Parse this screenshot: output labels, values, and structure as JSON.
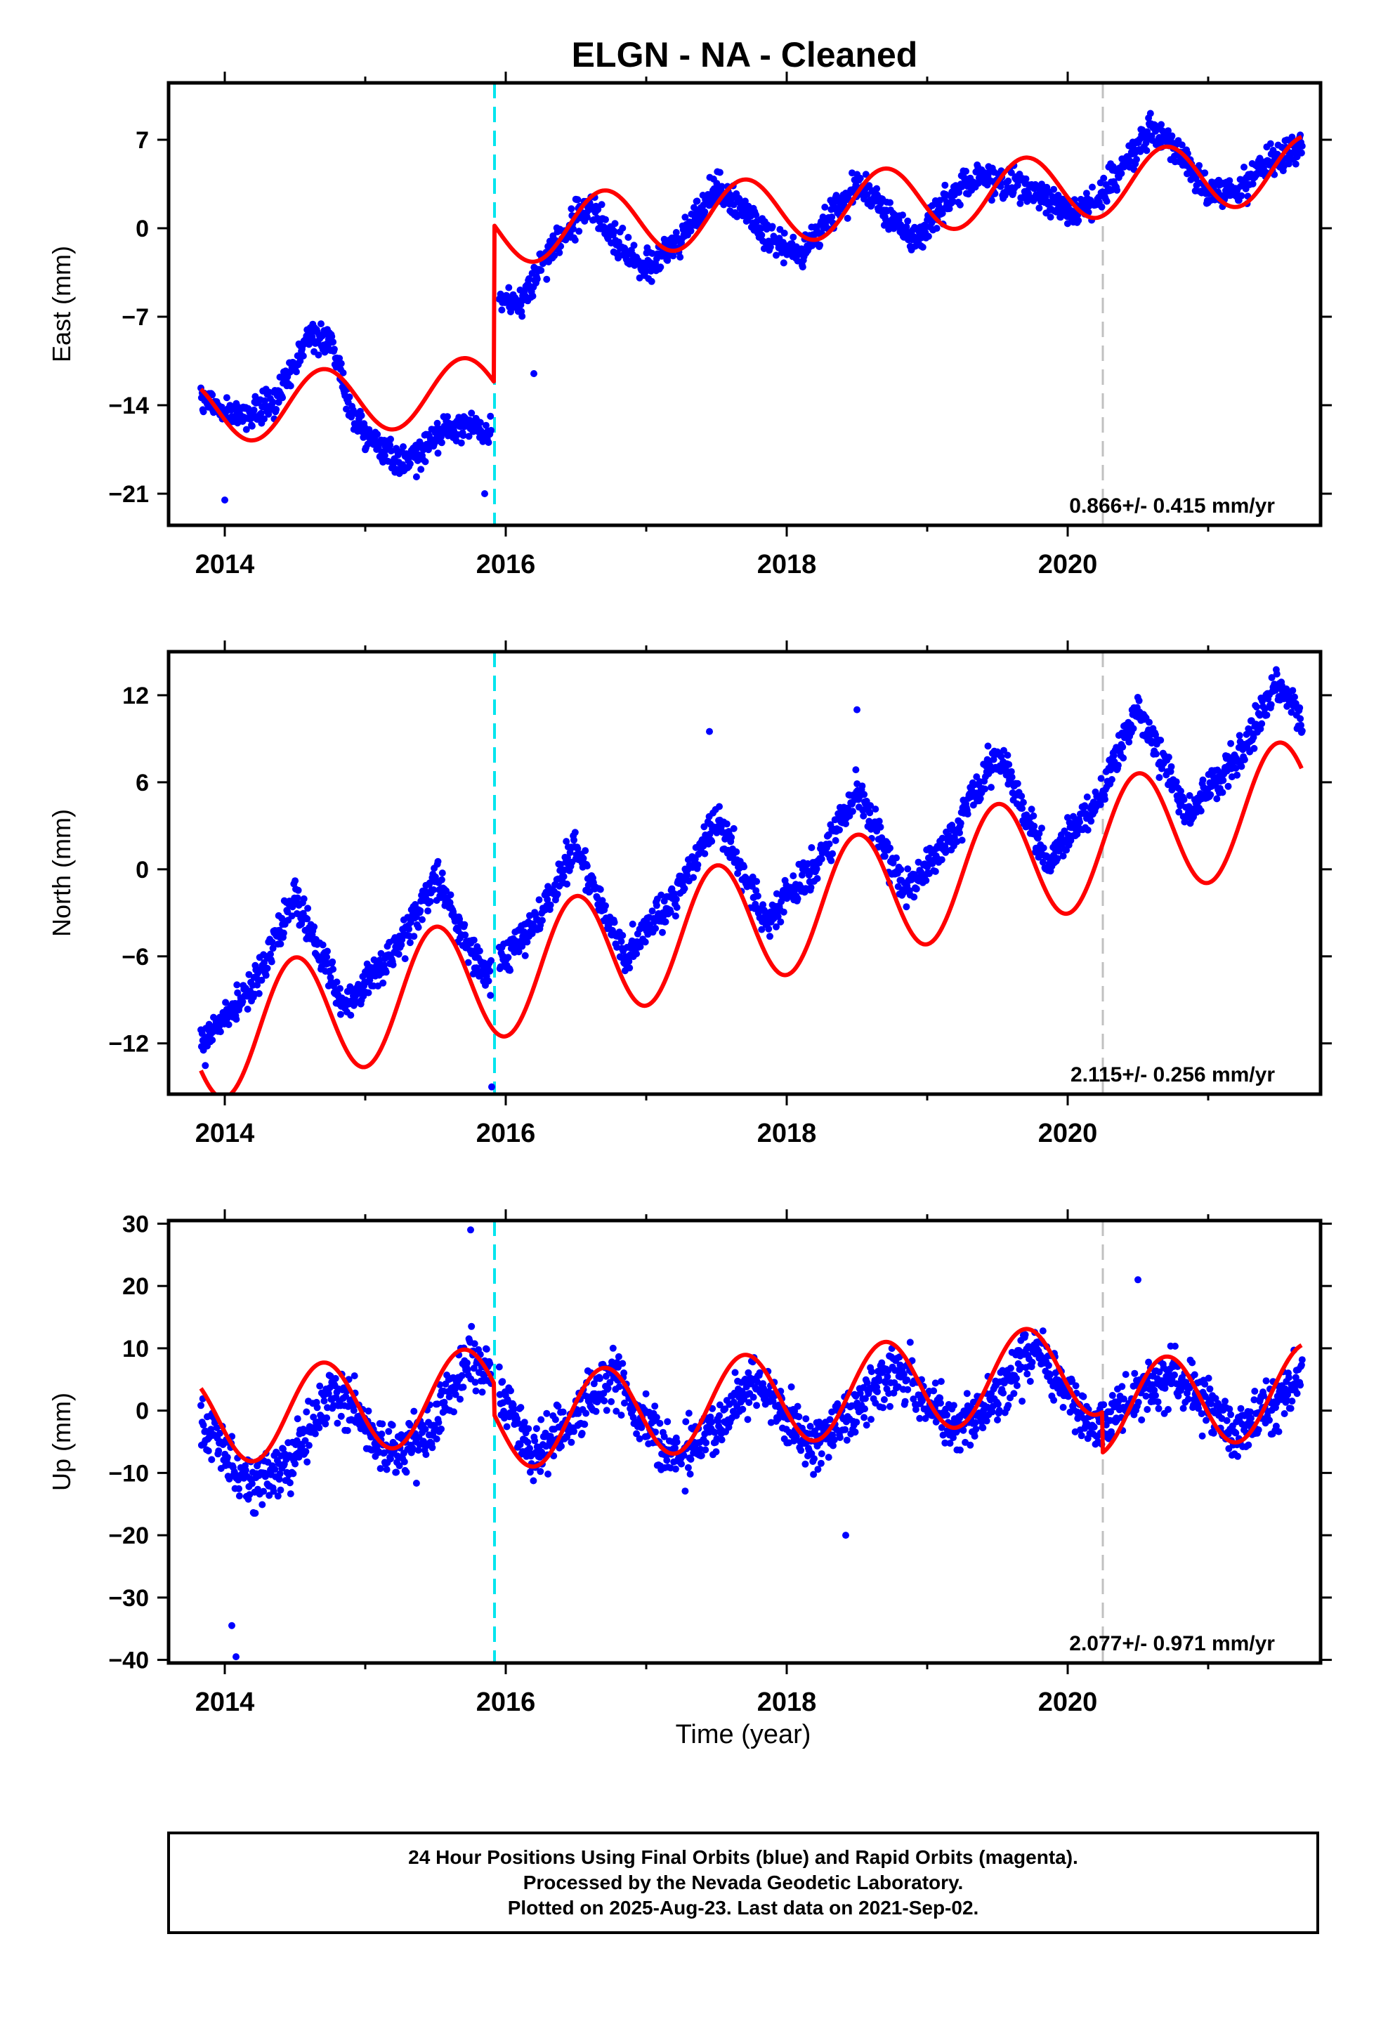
{
  "title": "ELGN  - NA - Cleaned",
  "colors": {
    "final_orbits": "#0000ff",
    "model_fit": "#ff0000",
    "equipment_change": "#00e5ee",
    "other_event": "#c0c0c0"
  },
  "chart_data": [
    {
      "type": "scatter",
      "ylabel": "East (mm)",
      "xlim": [
        2013.6,
        2021.8
      ],
      "ylim": [
        -23.5,
        11.5
      ],
      "yticks": [
        7,
        0,
        -7,
        -14,
        -21
      ],
      "yticklabels": [
        "7",
        "0",
        "−7",
        "−14",
        "−21"
      ],
      "xticks": [
        2014,
        2016,
        2018,
        2020
      ],
      "xticklabels": [
        "2014",
        "2016",
        "2018",
        "2020"
      ],
      "rate": "0.866+/- 0.415 mm/yr",
      "steps": [
        {
          "t": 2015.92,
          "size": 12.4
        }
      ],
      "series": [
        {
          "kind": "points",
          "anchors": {
            "t": [
              2013.83,
              2014.0,
              2014.2,
              2014.4,
              2014.6,
              2014.75,
              2014.9,
              2015.1,
              2015.3,
              2015.5,
              2015.7,
              2015.9,
              2015.93,
              2016.1,
              2016.3,
              2016.6,
              2016.8,
              2017.0,
              2017.2,
              2017.5,
              2017.7,
              2017.9,
              2018.1,
              2018.3,
              2018.5,
              2018.7,
              2018.9,
              2019.1,
              2019.3,
              2019.6,
              2019.8,
              2020.0,
              2020.2,
              2020.4,
              2020.6,
              2020.8,
              2021.0,
              2021.2,
              2021.4,
              2021.67
            ],
            "value": [
              -13.5,
              -14.5,
              -15.0,
              -13.0,
              -8.5,
              -9.0,
              -14.5,
              -17.5,
              -18.5,
              -16.5,
              -15.5,
              -16.0,
              -5.0,
              -6.0,
              -2.0,
              2.0,
              -1.5,
              -3.0,
              -1.5,
              3.0,
              1.5,
              -1.0,
              -2.0,
              1.0,
              3.5,
              1.5,
              -1.0,
              1.5,
              4.0,
              3.5,
              2.5,
              1.5,
              2.0,
              5.0,
              8.0,
              6.0,
              3.0,
              3.0,
              5.0,
              6.5
            ]
          }
        },
        {
          "kind": "model",
          "params": {
            "offset": -14.5,
            "rate": 0.866,
            "seasonal_amplitude": 2.6,
            "peak_year_fraction": 0.7
          }
        }
      ]
    },
    {
      "type": "scatter",
      "ylabel": "North (mm)",
      "xlim": [
        2013.6,
        2021.8
      ],
      "ylim": [
        -15.5,
        15.0
      ],
      "yticks": [
        12,
        6,
        0,
        -6,
        -12
      ],
      "yticklabels": [
        "12",
        "6",
        "0",
        "−6",
        "−12"
      ],
      "xticks": [
        2014,
        2016,
        2018,
        2020
      ],
      "xticklabels": [
        "2014",
        "2016",
        "2018",
        "2020"
      ],
      "rate": "2.115+/- 0.256 mm/yr",
      "steps": [],
      "series": [
        {
          "kind": "points",
          "anchors": {
            "t": [
              2013.83,
              2014.2,
              2014.5,
              2014.85,
              2015.2,
              2015.5,
              2015.85,
              2016.2,
              2016.5,
              2016.85,
              2017.2,
              2017.5,
              2017.85,
              2018.2,
              2018.5,
              2018.85,
              2019.2,
              2019.5,
              2019.85,
              2020.2,
              2020.5,
              2020.85,
              2021.2,
              2021.5,
              2021.67
            ],
            "value": [
              -12.0,
              -8.0,
              -2.0,
              -9.5,
              -6.0,
              -0.5,
              -7.5,
              -4.0,
              1.5,
              -6.0,
              -2.0,
              3.5,
              -3.5,
              0.0,
              5.5,
              -1.5,
              2.5,
              8.0,
              0.5,
              4.5,
              11.0,
              4.0,
              7.5,
              13.0,
              10.0
            ]
          }
        },
        {
          "kind": "model",
          "params": {
            "offset": -11.8,
            "rate": 2.115,
            "seasonal_amplitude": 4.3,
            "peak_year_fraction": 0.5
          }
        }
      ]
    },
    {
      "type": "scatter",
      "ylabel": "Up (mm)",
      "xlabel": "Time (year)",
      "xlim": [
        2013.6,
        2021.8
      ],
      "ylim": [
        -40.5,
        30.5
      ],
      "yticks": [
        30,
        20,
        10,
        0,
        -10,
        -20,
        -30,
        -40
      ],
      "yticklabels": [
        "30",
        "20",
        "10",
        "0",
        "−10",
        "−20",
        "−30",
        "−40"
      ],
      "xticks": [
        2014,
        2016,
        2018,
        2020
      ],
      "xticklabels": [
        "2014",
        "2016",
        "2018",
        "2020"
      ],
      "rate": "2.077+/- 0.971 mm/yr",
      "steps": [
        {
          "t": 2015.92,
          "size": -5.0
        },
        {
          "t": 2020.25,
          "size": -6.5
        }
      ],
      "series": [
        {
          "kind": "points",
          "anchors": {
            "t": [
              2013.83,
              2014.2,
              2014.45,
              2014.75,
              2015.2,
              2015.45,
              2015.75,
              2015.9,
              2016.2,
              2016.5,
              2016.75,
              2017.2,
              2017.5,
              2017.75,
              2018.2,
              2018.5,
              2018.75,
              2019.2,
              2019.5,
              2019.75,
              2020.2,
              2020.5,
              2020.75,
              2021.2,
              2021.5,
              2021.67
            ],
            "value": [
              -2.0,
              -12.0,
              -8.0,
              3.0,
              -7.0,
              -3.0,
              9.0,
              5.0,
              -7.0,
              -1.0,
              6.0,
              -8.0,
              -3.0,
              5.0,
              -5.0,
              0.0,
              7.0,
              -3.0,
              2.0,
              10.0,
              -3.0,
              3.0,
              6.0,
              -3.0,
              2.0,
              7.0
            ]
          }
        },
        {
          "kind": "model",
          "params": {
            "offset": -1.5,
            "rate": 2.077,
            "seasonal_amplitude": 7.4,
            "peak_year_fraction": 0.7
          }
        }
      ]
    }
  ],
  "event_lines": [
    {
      "t": 2015.92,
      "kind": "equipment_change"
    },
    {
      "t": 2020.25,
      "kind": "other_event"
    }
  ],
  "caption": {
    "line1": "24 Hour Positions Using Final Orbits (blue) and Rapid Orbits (magenta).",
    "line2": "Processed by the Nevada Geodetic Laboratory.",
    "line3": "Plotted on 2025-Aug-23. Last data on 2021-Sep-02."
  }
}
